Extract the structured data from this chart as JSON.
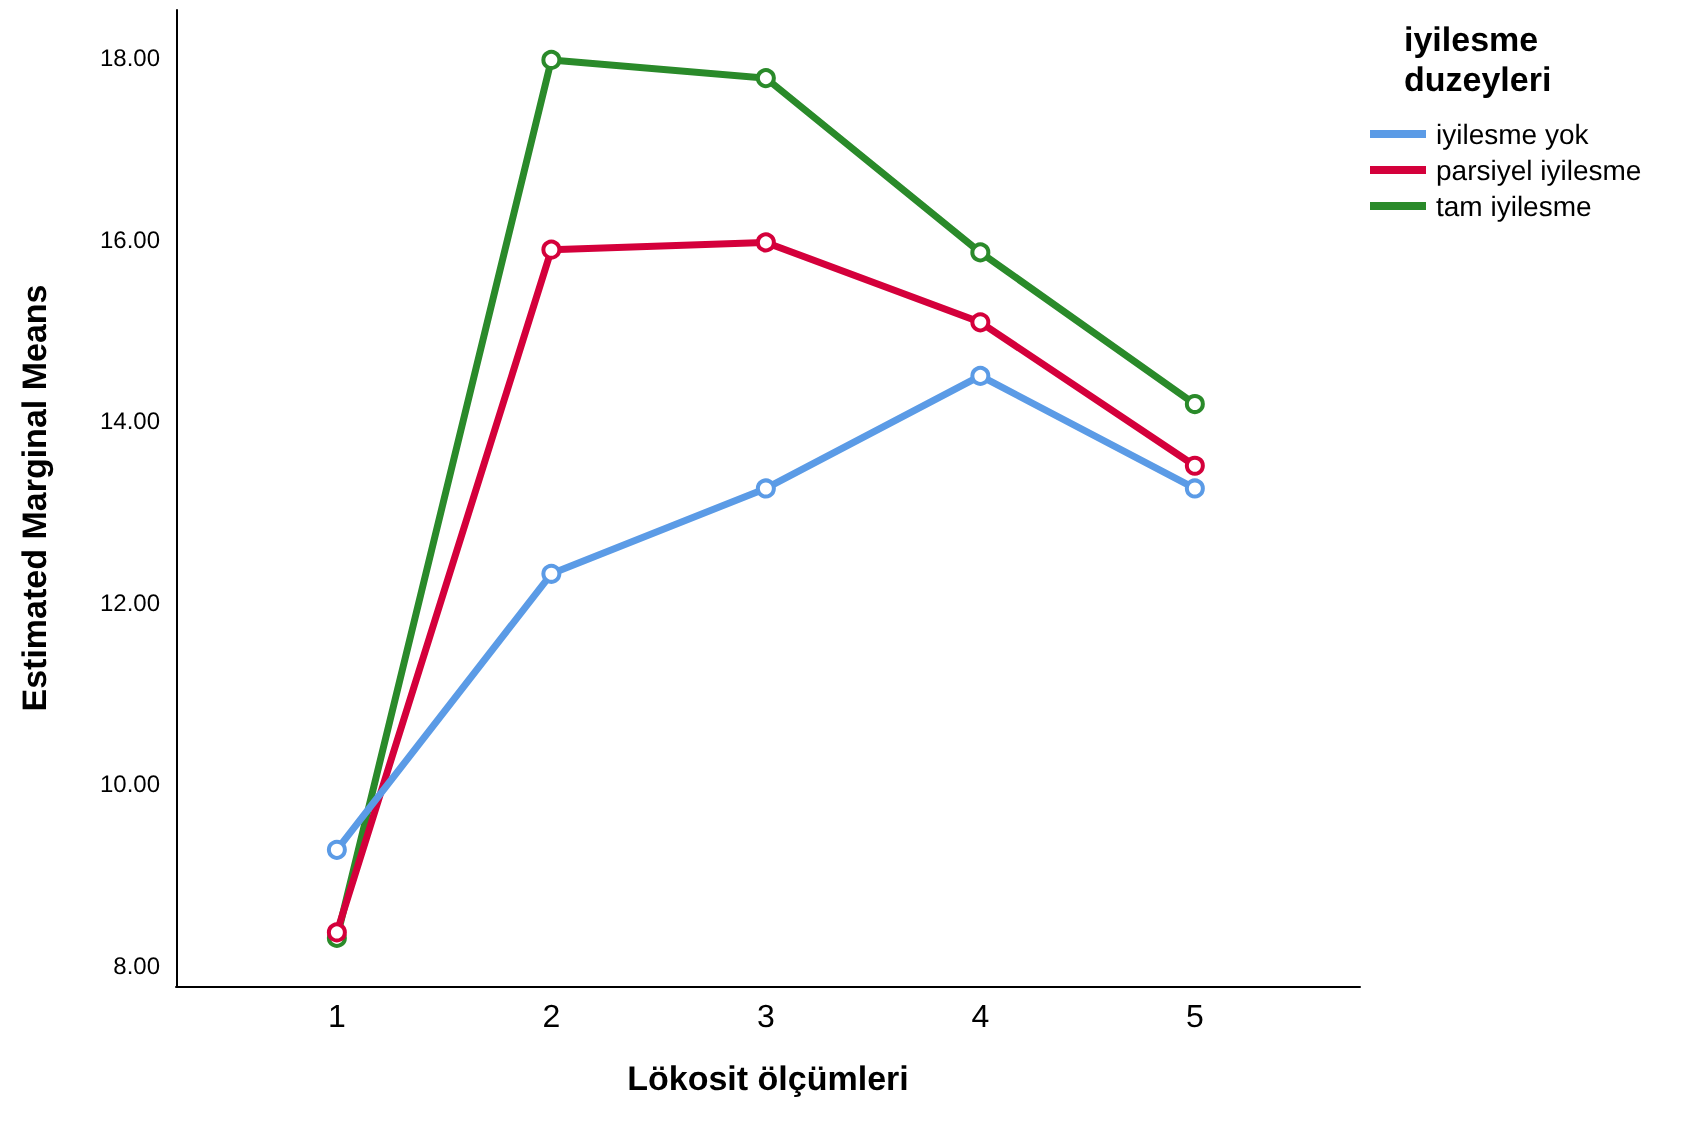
{
  "chart_data": {
    "type": "line",
    "xlabel": "Lökosit ölçümleri",
    "ylabel": "Estimated Marginal Means",
    "legend_title": "iyilesme duzeyleri",
    "x": [
      1,
      2,
      3,
      4,
      5
    ],
    "xlim": [
      0.25,
      5.77
    ],
    "xticks": [
      1,
      2,
      3,
      4,
      5
    ],
    "ylim": [
      7.78,
      18.53
    ],
    "yticks": [
      {
        "value": 8,
        "label": "8.00"
      },
      {
        "value": 10,
        "label": "10.00"
      },
      {
        "value": 12,
        "label": "12.00"
      },
      {
        "value": 14,
        "label": "14.00"
      },
      {
        "value": 16,
        "label": "16.00"
      },
      {
        "value": 18,
        "label": "18.00"
      }
    ],
    "series": [
      {
        "name": "iyilesme yok",
        "color": "#5b9be6",
        "values": [
          9.28,
          12.32,
          13.26,
          14.5,
          13.26
        ]
      },
      {
        "name": "parsiyel iyilesme",
        "color": "#d4003b",
        "values": [
          8.37,
          15.89,
          15.97,
          15.09,
          13.51
        ]
      },
      {
        "name": "tam iyilesme",
        "color": "#2a8a2a",
        "values": [
          8.31,
          17.98,
          17.78,
          15.86,
          14.19
        ]
      }
    ],
    "grid": false,
    "legend": "top right",
    "marker": "circle",
    "line_style": "solid"
  }
}
